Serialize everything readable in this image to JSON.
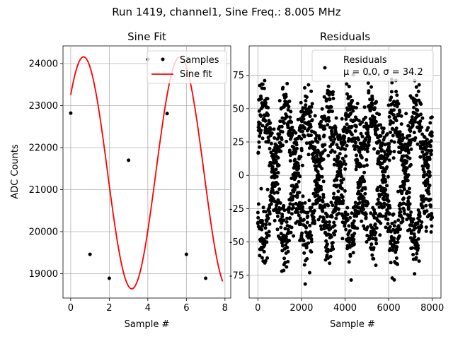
{
  "figure": {
    "suptitle": "Run 1419, channel1, Sine Freq.: 8.005 MHz"
  },
  "colors": {
    "fit": "#ff0000",
    "marker": "#000000",
    "grid": "#b0b0b0"
  },
  "chart_data": [
    {
      "type": "scatter+line",
      "title": "Sine Fit",
      "xlabel": "Sample #",
      "ylabel": "ADC Counts",
      "xlim": [
        -0.4,
        8.3
      ],
      "ylim": [
        18420,
        24420
      ],
      "xticks": [
        0,
        2,
        4,
        6,
        8
      ],
      "yticks": [
        19000,
        20000,
        21000,
        22000,
        23000,
        24000
      ],
      "grid": true,
      "legend": {
        "placement": "upper-right",
        "entries": [
          "Samples",
          "Sine fit"
        ]
      },
      "series": [
        {
          "name": "Samples",
          "kind": "scatter",
          "x": [
            0,
            1,
            2,
            3,
            4,
            5,
            6,
            7
          ],
          "y": [
            22820,
            19460,
            18890,
            21700,
            24100,
            22810,
            19460,
            18890
          ]
        },
        {
          "name": "Sine fit",
          "kind": "line",
          "model": {
            "offset": 21400,
            "amplitude": 2760,
            "period": 5.0,
            "phase": 0.735
          },
          "xrange": [
            0,
            7.88
          ],
          "samples": 200
        }
      ]
    },
    {
      "type": "scatter",
      "title": "Residuals",
      "xlabel": "Sample #",
      "ylabel": "",
      "xlim": [
        -400,
        8400
      ],
      "ylim": [
        -92,
        97
      ],
      "xticks": [
        0,
        2000,
        4000,
        6000,
        8000
      ],
      "yticks": [
        -75,
        -50,
        -25,
        0,
        25,
        50,
        75
      ],
      "grid": true,
      "legend": {
        "placement": "upper-right",
        "entries": [
          "Residuals",
          "μ = 0.0, σ = 34.2"
        ]
      },
      "stats": {
        "mean": 0.0,
        "std": 34.2
      },
      "series": [
        {
          "name": "Residuals",
          "kind": "scatter-band",
          "npoints": 8000,
          "pattern": {
            "period": 1000,
            "upper_band_center": 30,
            "upper_band_amplitude": 18,
            "lower_band_center": -30,
            "lower_band_amplitude": 18,
            "spread": 12,
            "min": -83,
            "max": 85
          }
        }
      ]
    }
  ]
}
